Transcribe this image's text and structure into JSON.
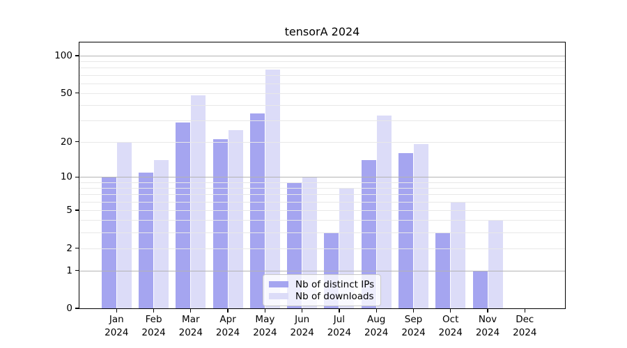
{
  "title": "tensorA 2024",
  "legend": {
    "items": [
      {
        "label": "Nb of distinct IPs",
        "color": "#a5a5f0"
      },
      {
        "label": "Nb of downloads",
        "color": "#dcdcf8"
      }
    ]
  },
  "colors": {
    "bar_distinct_ips": "#a5a5f0",
    "bar_downloads": "#dcdcf8",
    "grid_major": "#b3b3b3",
    "grid_minor": "#e8e8e8",
    "axis": "#000000",
    "legend_border": "#c9c9c9"
  },
  "chart_data": {
    "type": "bar",
    "title": "tensorA 2024",
    "categories": [
      "Jan 2024",
      "Feb 2024",
      "Mar 2024",
      "Apr 2024",
      "May 2024",
      "Jun 2024",
      "Jul 2024",
      "Aug 2024",
      "Sep 2024",
      "Oct 2024",
      "Nov 2024",
      "Dec 2024"
    ],
    "series": [
      {
        "name": "Nb of distinct IPs",
        "color": "#a5a5f0",
        "values": [
          10,
          11,
          29,
          21,
          34,
          9,
          3,
          14,
          16,
          3,
          1,
          0
        ]
      },
      {
        "name": "Nb of downloads",
        "color": "#dcdcf8",
        "values": [
          20,
          14,
          48,
          25,
          77,
          10,
          8,
          33,
          19,
          6,
          4,
          0
        ]
      }
    ],
    "xlabel": "",
    "ylabel": "",
    "yscale": "log1p",
    "y_ticks": [
      0,
      1,
      2,
      5,
      10,
      20,
      50,
      100
    ],
    "y_minor_grid": [
      2,
      3,
      4,
      5,
      6,
      7,
      8,
      9,
      20,
      30,
      40,
      50,
      60,
      70,
      80,
      90
    ],
    "y_major_grid": [
      1,
      10,
      100
    ],
    "ylim": [
      0,
      130
    ],
    "grid": "horizontal major+minor, drawn over bars",
    "legend_position": "lower center"
  }
}
